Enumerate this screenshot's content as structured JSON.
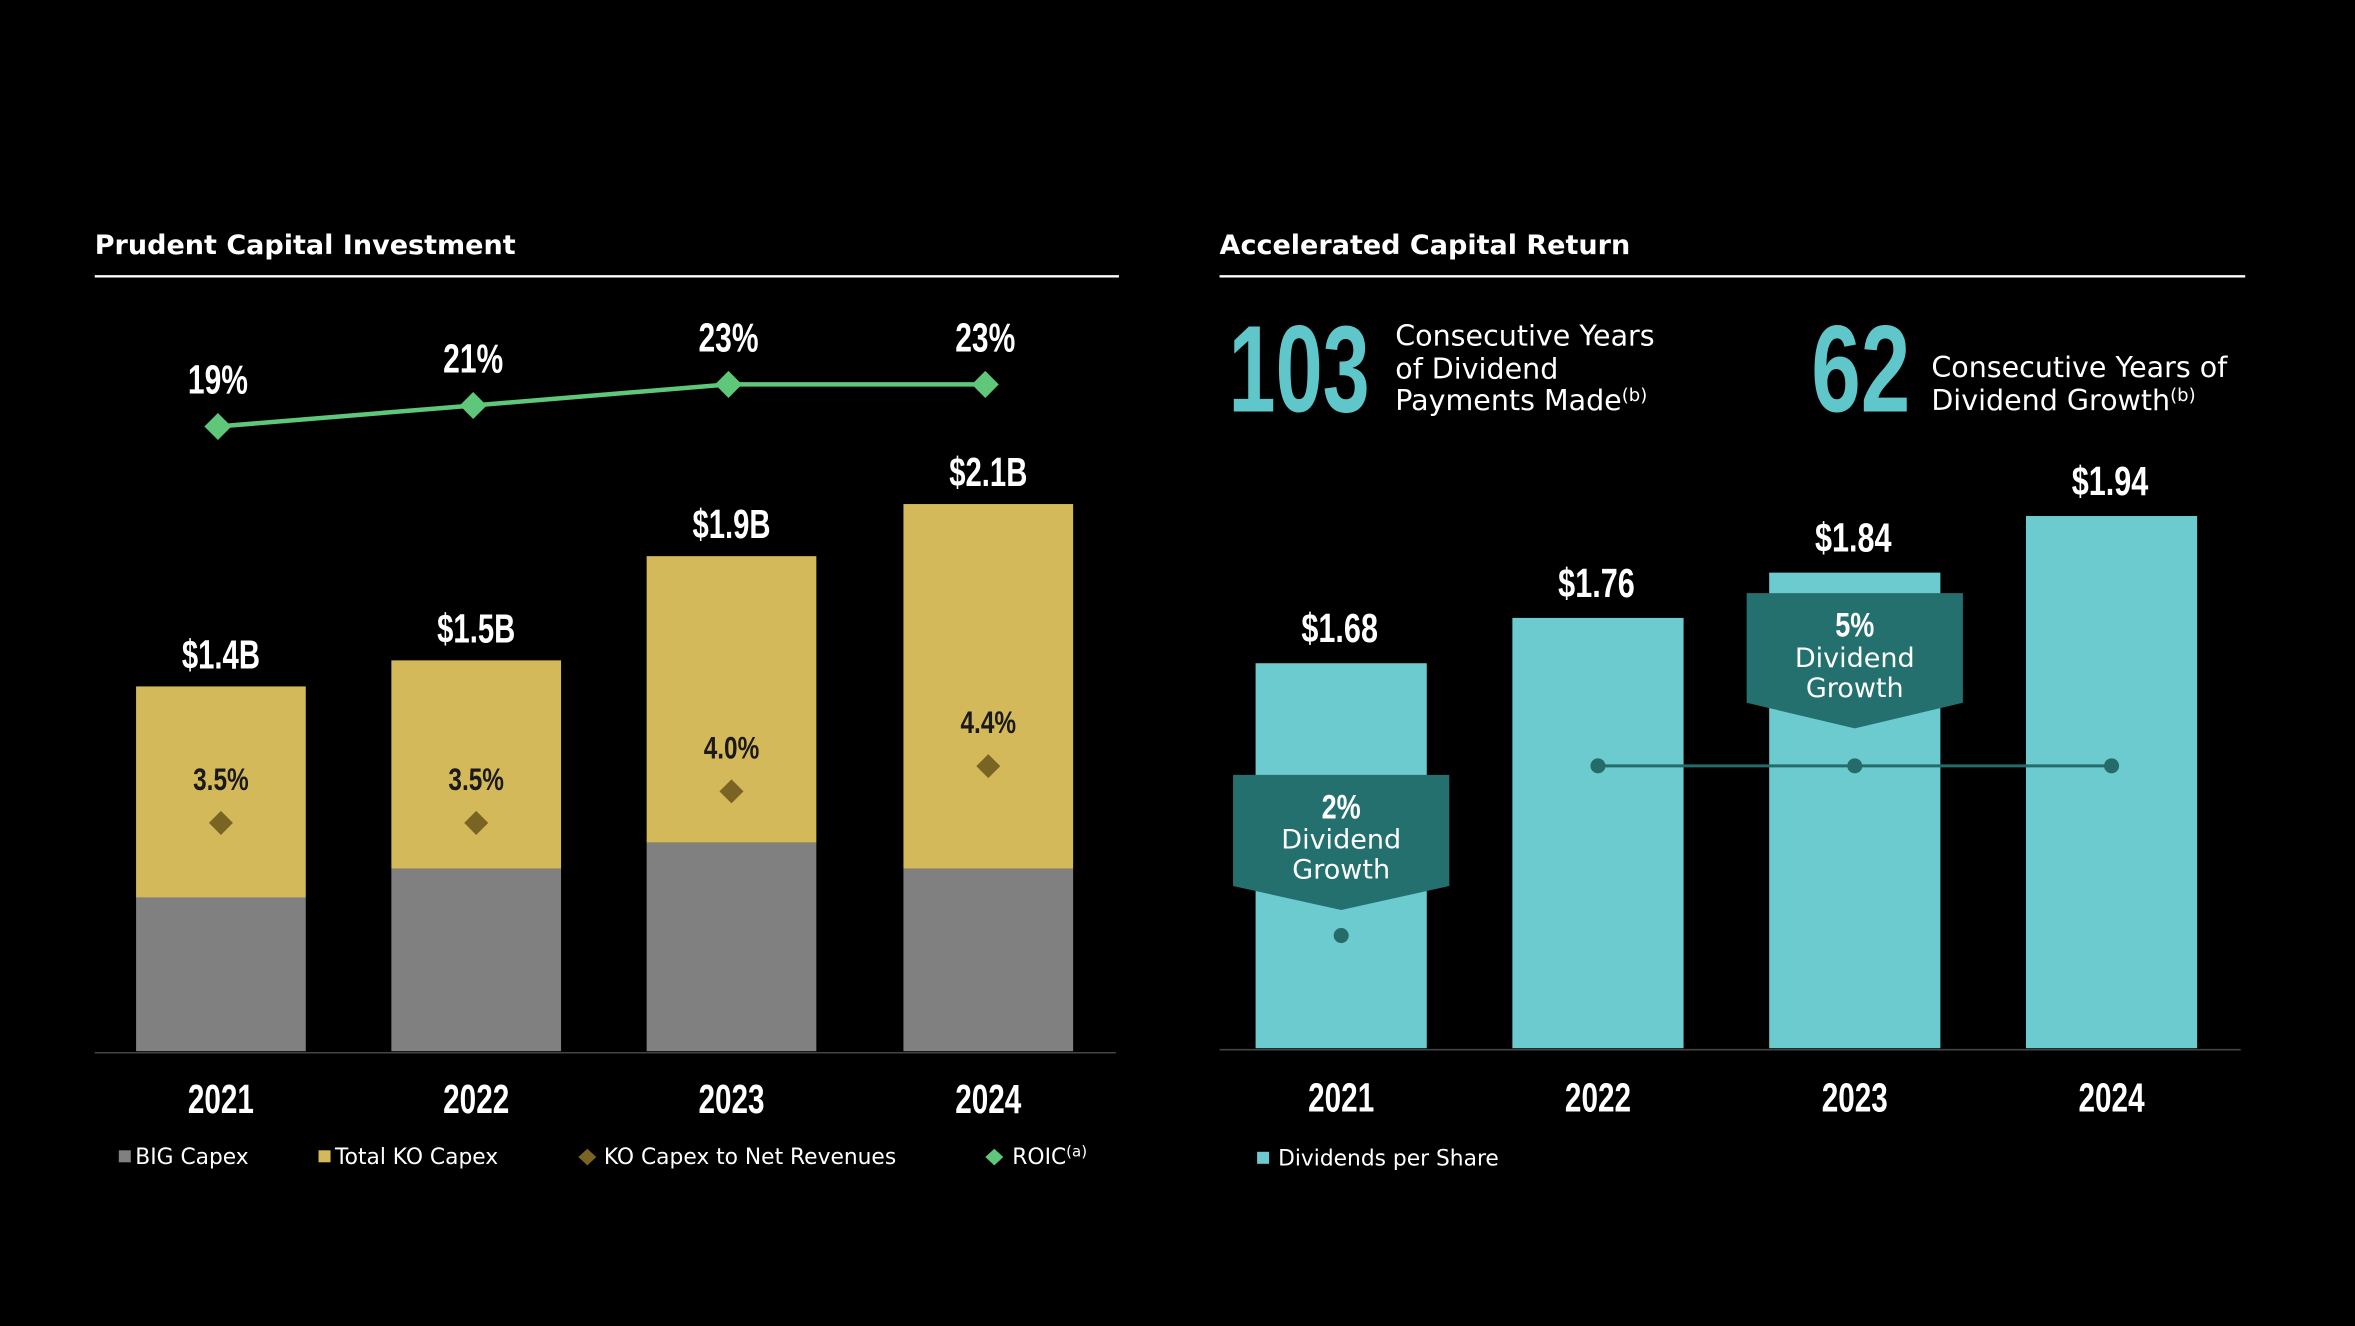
{
  "chart_data": [
    {
      "type": "bar",
      "title": "Prudent Capital Investment",
      "stacked": true,
      "categories": [
        "2021",
        "2022",
        "2023",
        "2024"
      ],
      "series": [
        {
          "name": "BIG Capex",
          "values": [
            0.59,
            0.7,
            0.8,
            0.7
          ],
          "color": "#808080"
        },
        {
          "name": "Total KO Capex",
          "values": [
            1.4,
            1.5,
            1.9,
            2.1
          ],
          "labels": [
            "$1.4B",
            "$1.5B",
            "$1.9B",
            "$2.1B"
          ],
          "color": "#d4b95a"
        },
        {
          "name": "KO Capex to Net Revenues",
          "type": "scatter",
          "values": [
            3.5,
            3.5,
            4.0,
            4.4
          ],
          "labels": [
            "3.5%",
            "3.5%",
            "4.0%",
            "4.4%"
          ],
          "color": "#7a6424"
        },
        {
          "name": "ROIC",
          "name_sup": "(a)",
          "type": "line",
          "values": [
            19,
            21,
            23,
            23
          ],
          "labels": [
            "19%",
            "21%",
            "23%",
            "23%"
          ],
          "color": "#5ec77a"
        }
      ],
      "legend": "bottom",
      "grid": false
    },
    {
      "type": "bar",
      "title": "Accelerated Capital Return",
      "categories": [
        "2021",
        "2022",
        "2023",
        "2024"
      ],
      "series": [
        {
          "name": "Dividends per Share",
          "values": [
            1.68,
            1.76,
            1.84,
            1.94
          ],
          "labels": [
            "$1.68",
            "$1.76",
            "$1.84",
            "$1.94"
          ],
          "color": "#6ccbce"
        }
      ],
      "annotations": [
        {
          "category": "2021",
          "pct": "2%",
          "line1": "Dividend",
          "line2": "Growth"
        },
        {
          "category": "2023",
          "pct": "5%",
          "line1": "Dividend",
          "line2": "Growth"
        }
      ],
      "stats": [
        {
          "value": "103",
          "lines": [
            "Consecutive Years",
            "of Dividend",
            "Payments Made"
          ],
          "sup": "(b)"
        },
        {
          "value": "62",
          "lines": [
            "Consecutive Years of",
            "Dividend Growth"
          ],
          "sup": "(b)"
        }
      ],
      "legend": "bottom",
      "grid": false
    }
  ],
  "colors": {
    "background": "#000000",
    "callout": "#24706f",
    "dot": "#246b6a"
  }
}
